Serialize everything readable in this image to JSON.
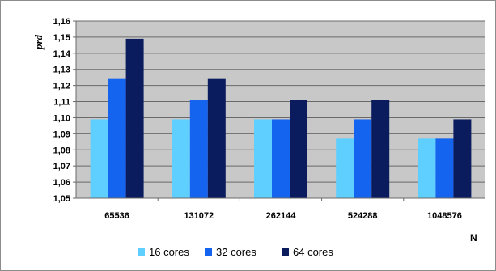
{
  "chart_data": {
    "type": "bar",
    "title": "",
    "xlabel": "N",
    "ylabel": "prd",
    "ylim": [
      1.05,
      1.16
    ],
    "ytick_step": 0.01,
    "ytick_labels": [
      "1,05",
      "1,06",
      "1,07",
      "1,08",
      "1,09",
      "1,10",
      "1,11",
      "1,12",
      "1,13",
      "1,14",
      "1,15",
      "1,16"
    ],
    "categories": [
      "65536",
      "131072",
      "262144",
      "524288",
      "1048576"
    ],
    "series": [
      {
        "name": "16 cores",
        "color": "#5fcfff",
        "values": [
          1.099,
          1.099,
          1.099,
          1.087,
          1.087
        ]
      },
      {
        "name": "32 cores",
        "color": "#1464f0",
        "values": [
          1.124,
          1.111,
          1.099,
          1.099,
          1.087
        ]
      },
      {
        "name": "64 cores",
        "color": "#0a1b5e",
        "values": [
          1.149,
          1.124,
          1.111,
          1.111,
          1.099
        ]
      }
    ],
    "grid": true,
    "plot_background": "#c8c8c8",
    "legend_position": "bottom"
  }
}
